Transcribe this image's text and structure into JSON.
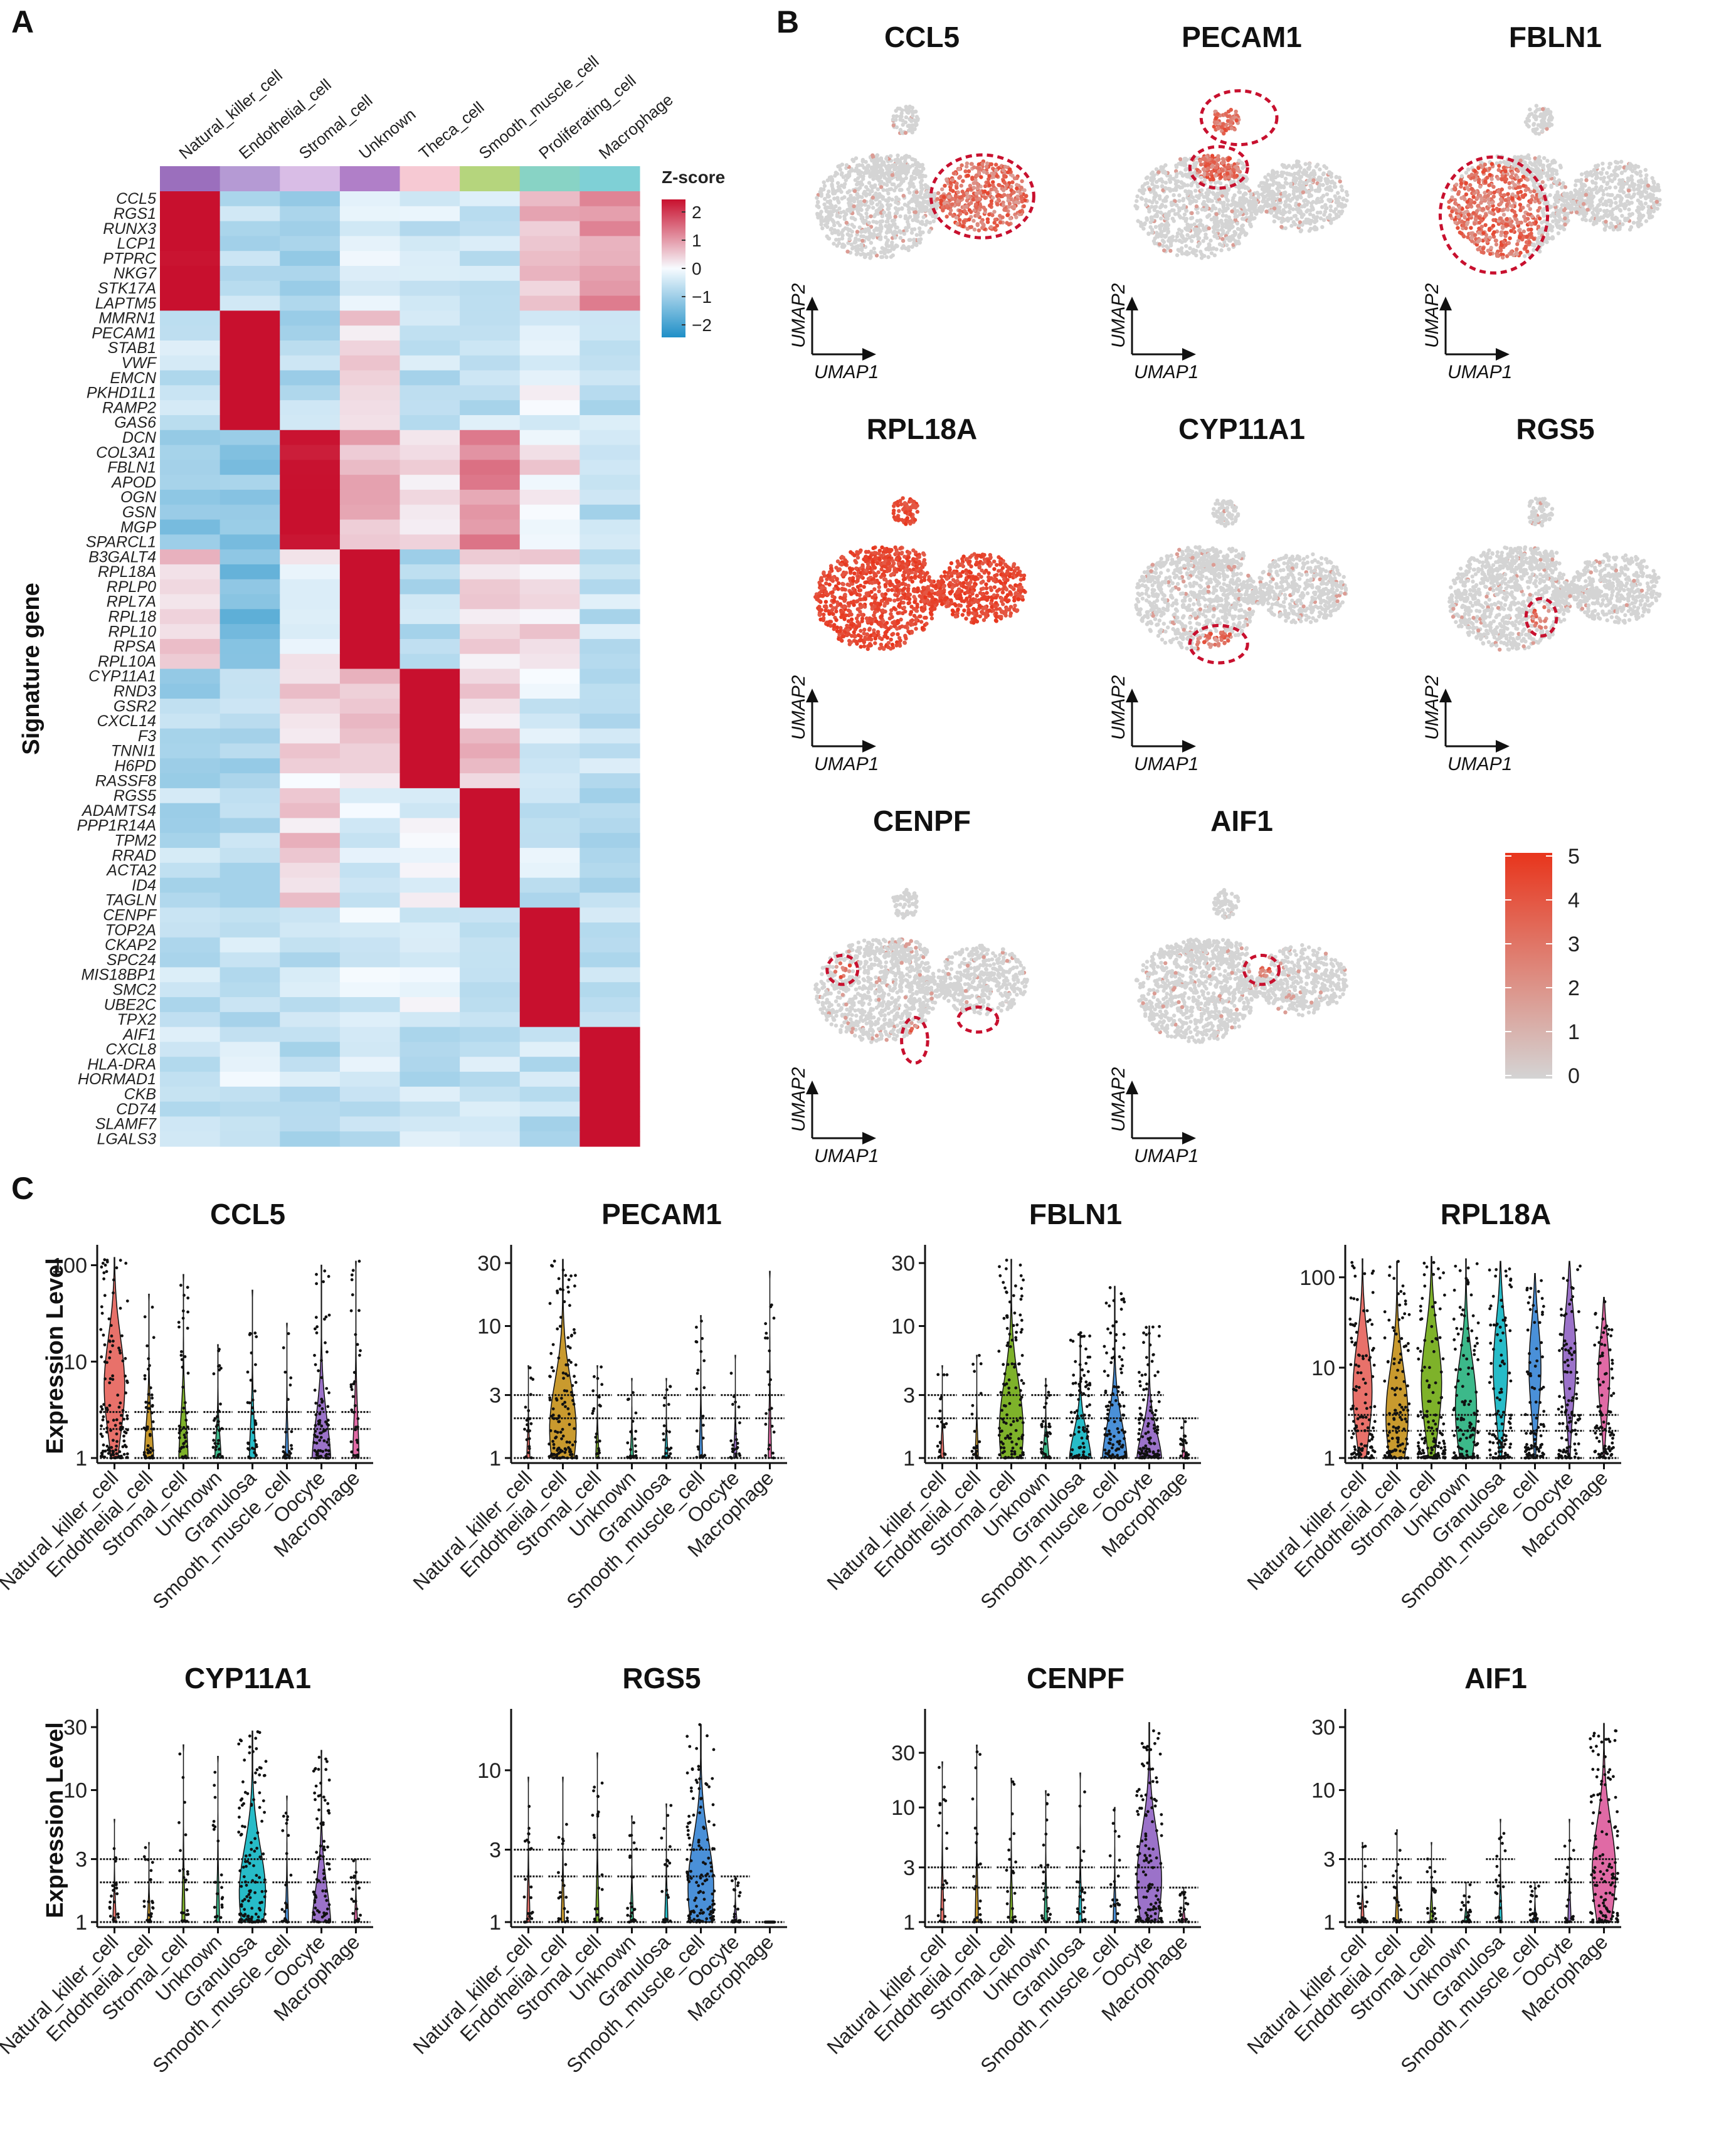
{
  "panels": {
    "a": "A",
    "b": "B",
    "c": "C"
  },
  "chart_data": [
    {
      "type": "heatmap",
      "panel": "A",
      "ylabel": "Signature gene",
      "legend_title": "Z-score",
      "legend_ticks": [
        "2",
        "1",
        "0",
        "−1",
        "−2"
      ],
      "color_scale": {
        "low": "#1f8fc7",
        "mid": "#f7fbff",
        "high": "#c8102e"
      },
      "columns": [
        "Natural_killer_cell",
        "Endothelial_cell",
        "Stromal_cell",
        "Unknown",
        "Theca_cell",
        "Smooth_muscle_cell",
        "Proliferating_cell",
        "Macrophage"
      ],
      "column_colors": [
        "#9b6fbd",
        "#b59ad4",
        "#d9bde6",
        "#b07fc8",
        "#f6c9d3",
        "#b5d57d",
        "#88d3c5",
        "#7fd0d6"
      ],
      "gene_groups": [
        [
          "CCL5",
          "RGS1",
          "RUNX3",
          "LCP1",
          "PTPRC",
          "NKG7",
          "STK17A",
          "LAPTM5"
        ],
        [
          "MMRN1",
          "PECAM1",
          "STAB1",
          "VWF",
          "EMCN",
          "PKHD1L1",
          "RAMP2",
          "GAS6"
        ],
        [
          "DCN",
          "COL3A1",
          "FBLN1",
          "APOD",
          "OGN",
          "GSN",
          "MGP",
          "SPARCL1"
        ],
        [
          "B3GALT4",
          "RPL18A",
          "RPLP0",
          "RPL7A",
          "RPL18",
          "RPL10",
          "RPSA",
          "RPL10A"
        ],
        [
          "CYP11A1",
          "RND3",
          "GSR2",
          "CXCL14",
          "F3",
          "TNNI1",
          "H6PD",
          "RASSF8"
        ],
        [
          "RGS5",
          "ADAMTS4",
          "PPP1R14A",
          "TPM2",
          "RRAD",
          "ACTA2",
          "ID4",
          "TAGLN"
        ],
        [
          "CENPF",
          "TOP2A",
          "CKAP2",
          "SPC24",
          "MIS18BP1",
          "SMC2",
          "UBE2C",
          "TPX2"
        ],
        [
          "AIF1",
          "CXCL8",
          "HLA-DRA",
          "HORMAD1",
          "CKB",
          "CD74",
          "SLAMF7",
          "LGALS3"
        ]
      ],
      "block_values": [
        [
          2.1,
          -0.5,
          -0.7,
          -0.3,
          -0.4,
          -0.4,
          0.5,
          0.8
        ],
        [
          -0.5,
          2.3,
          -0.6,
          0.3,
          -0.5,
          -0.5,
          -0.1,
          -0.5
        ],
        [
          -0.9,
          -0.9,
          2.0,
          0.6,
          0.1,
          0.9,
          0.2,
          -0.6
        ],
        [
          0.4,
          -1.2,
          0.0,
          2.3,
          -0.6,
          0.2,
          0.3,
          -0.5
        ],
        [
          -0.7,
          -0.7,
          0.3,
          0.4,
          2.3,
          0.4,
          -0.3,
          -0.5
        ],
        [
          -0.6,
          -0.6,
          0.4,
          -0.2,
          -0.1,
          2.3,
          -0.4,
          -0.5
        ],
        [
          -0.5,
          -0.5,
          -0.5,
          -0.3,
          -0.2,
          -0.4,
          2.2,
          -0.5
        ],
        [
          -0.4,
          -0.3,
          -0.5,
          -0.4,
          -0.5,
          -0.5,
          -0.5,
          2.3
        ]
      ]
    },
    {
      "type": "scatter",
      "panel": "B",
      "subtype": "umap_feature_plots",
      "genes": [
        "CCL5",
        "PECAM1",
        "FBLN1",
        "RPL18A",
        "CYP11A1",
        "RGS5",
        "CENPF",
        "AIF1"
      ],
      "xlabel": "UMAP1",
      "ylabel": "UMAP2",
      "colorbar_ticks": [
        "5",
        "4",
        "3",
        "2",
        "1",
        "0"
      ],
      "colorbar_range": [
        0,
        5
      ],
      "color_low": "#d4d4d4",
      "color_high": "#e8351c",
      "highlight_color": "#c8102e"
    },
    {
      "type": "violin",
      "panel": "C",
      "ylabel": "Expression Level",
      "categories": [
        "Natural_killer_cell",
        "Endothelial_cell",
        "Stromal_cell",
        "Unknown",
        "Granulosa",
        "Smooth_muscle_cell",
        "Oocyte",
        "Macrophage"
      ],
      "category_colors": [
        "#e8716a",
        "#c99a2e",
        "#7eb22a",
        "#3cb98a",
        "#27bcc8",
        "#4a90d8",
        "#9b72c9",
        "#e06aa5"
      ],
      "y_scale": "log10",
      "series": [
        {
          "name": "CCL5",
          "yticks": [
            1,
            10,
            100
          ],
          "ymax": 130,
          "medians": [
            8,
            1,
            1,
            1,
            1,
            1,
            1,
            1
          ],
          "maxima": [
            120,
            50,
            80,
            15,
            55,
            25,
            100,
            110
          ],
          "violin_widths": [
            1.0,
            0.3,
            0.3,
            0.2,
            0.2,
            0.1,
            0.6,
            0.2
          ]
        },
        {
          "name": "PECAM1",
          "yticks": [
            1,
            3,
            10,
            30
          ],
          "ymax": 35,
          "medians": [
            1,
            2,
            1,
            1,
            1,
            1,
            1,
            1
          ],
          "maxima": [
            5,
            32,
            5,
            4,
            4,
            12,
            6,
            26
          ],
          "violin_widths": [
            0.1,
            1.0,
            0.1,
            0.1,
            0.1,
            0.1,
            0.1,
            0.1
          ]
        },
        {
          "name": "FBLN1",
          "yticks": [
            1,
            3,
            10,
            30
          ],
          "ymax": 35,
          "medians": [
            1,
            1,
            2,
            1,
            1,
            1,
            1,
            1
          ],
          "maxima": [
            5,
            6,
            32,
            4,
            9,
            20,
            10,
            2
          ],
          "violin_widths": [
            0.1,
            0.1,
            0.9,
            0.2,
            0.7,
            0.8,
            0.8,
            0.1
          ]
        },
        {
          "name": "RPL18A",
          "yticks": [
            1,
            10,
            100
          ],
          "ymax": 180,
          "medians": [
            8,
            4,
            10,
            5,
            15,
            15,
            20,
            12
          ],
          "maxima": [
            160,
            150,
            170,
            160,
            150,
            110,
            150,
            60
          ],
          "violin_widths": [
            0.9,
            0.9,
            1.0,
            0.9,
            0.8,
            0.7,
            0.8,
            0.7
          ]
        },
        {
          "name": "CYP11A1",
          "yticks": [
            1,
            3,
            10,
            30
          ],
          "ymax": 35,
          "medians": [
            1,
            1,
            1,
            1,
            2,
            1,
            1,
            1
          ],
          "maxima": [
            6,
            4,
            22,
            18,
            28,
            9,
            20,
            3
          ],
          "violin_widths": [
            0.1,
            0.1,
            0.1,
            0.1,
            1.0,
            0.1,
            0.6,
            0.1
          ]
        },
        {
          "name": "RGS5",
          "yticks": [
            1,
            3,
            10
          ],
          "ymax": 22,
          "medians": [
            1,
            1,
            1,
            1,
            1,
            2,
            1,
            1
          ],
          "maxima": [
            9,
            9,
            13,
            5,
            6,
            20,
            2,
            1
          ],
          "violin_widths": [
            0.1,
            0.1,
            0.1,
            0.1,
            0.1,
            1.0,
            0.1,
            0.1
          ]
        },
        {
          "name": "CENPF",
          "yticks": [
            1,
            3,
            10,
            30
          ],
          "ymax": 60,
          "medians": [
            1,
            1,
            1,
            1,
            1,
            1,
            3,
            1
          ],
          "maxima": [
            25,
            35,
            18,
            14,
            20,
            10,
            55,
            2
          ],
          "violin_widths": [
            0.1,
            0.1,
            0.1,
            0.1,
            0.1,
            0.1,
            1.0,
            0.1
          ]
        },
        {
          "name": "AIF1",
          "yticks": [
            1,
            3,
            10,
            30
          ],
          "ymax": 35,
          "medians": [
            1,
            1,
            1,
            1,
            1,
            1,
            1,
            3
          ],
          "maxima": [
            4,
            5,
            4,
            2,
            6,
            2,
            6,
            32
          ],
          "violin_widths": [
            0.1,
            0.1,
            0.1,
            0.1,
            0.1,
            0.1,
            0.1,
            1.0
          ]
        }
      ]
    }
  ]
}
